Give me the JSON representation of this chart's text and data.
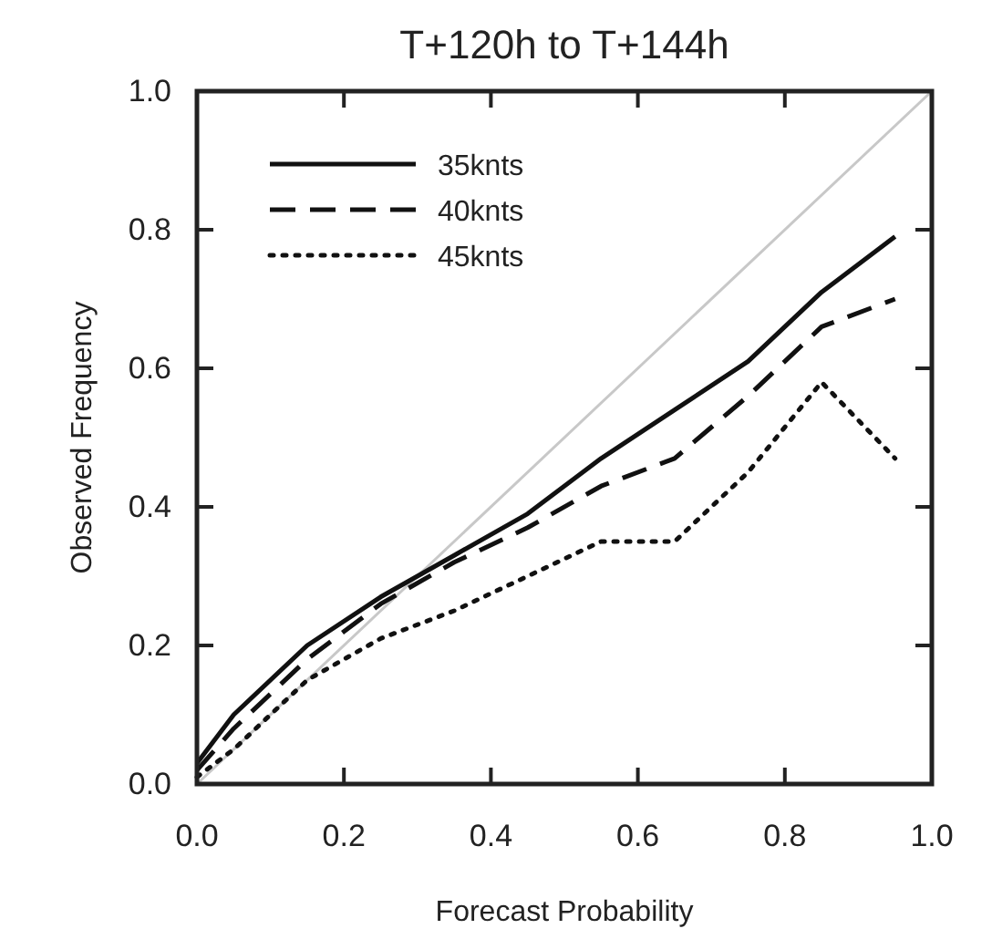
{
  "chart_data": {
    "type": "line",
    "title": "T+120h to T+144h",
    "xlabel": "Forecast Probability",
    "ylabel": "Observed Frequency",
    "x": [
      0,
      0.05,
      0.15,
      0.25,
      0.35,
      0.45,
      0.55,
      0.65,
      0.75,
      0.85,
      0.95
    ],
    "xlim": [
      0,
      1
    ],
    "ylim": [
      0,
      1
    ],
    "xticks": [
      {
        "value": 0,
        "label": "0.0"
      },
      0.2,
      0.4,
      0.6,
      0.8,
      {
        "value": 1,
        "label": "1.0"
      }
    ],
    "yticks": [
      {
        "value": 0,
        "label": "0.0"
      },
      0.2,
      0.4,
      0.6,
      0.8,
      {
        "value": 1,
        "label": "1.0"
      }
    ],
    "grid": false,
    "legend": "top left",
    "marker": "none",
    "series": [
      {
        "type": "line",
        "x": [
          0,
          1
        ],
        "values": [
          0,
          1
        ],
        "color": "#c8c8c8",
        "line_style": "solid"
      },
      {
        "name": "35knts",
        "color": "#111111",
        "line_style": "solid",
        "values": [
          0.03,
          0.1,
          0.2,
          0.27,
          0.33,
          0.39,
          0.47,
          0.54,
          0.61,
          0.71,
          0.79
        ]
      },
      {
        "name": "40knts",
        "color": "#111111",
        "line_style": "dashed",
        "values": [
          0.02,
          0.08,
          0.18,
          0.26,
          0.32,
          0.37,
          0.43,
          0.47,
          0.56,
          0.66,
          0.7
        ]
      },
      {
        "name": "45knts",
        "color": "#111111",
        "line_style": "dotted",
        "values": [
          0.01,
          0.05,
          0.15,
          0.21,
          0.25,
          0.3,
          0.35,
          0.35,
          0.45,
          0.58,
          0.47
        ]
      }
    ]
  }
}
